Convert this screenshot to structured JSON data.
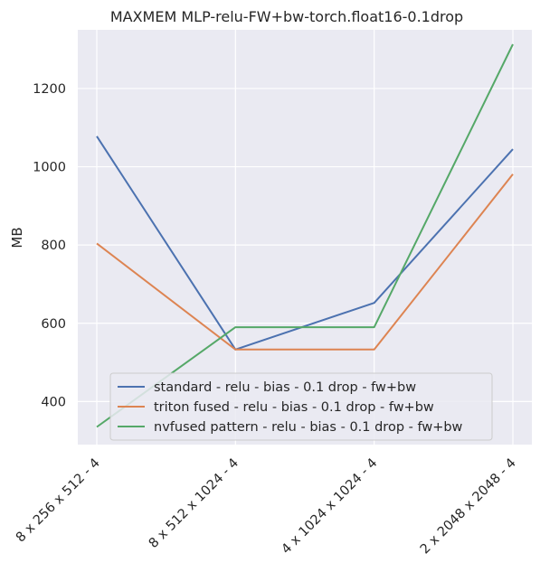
{
  "chart_data": {
    "type": "line",
    "title": "MAXMEM MLP-relu-FW+bw-torch.float16-0.1drop",
    "xlabel": "",
    "ylabel": "MB",
    "categories": [
      "8 x 256 x 512 - 4",
      "8 x 512 x 1024 - 4",
      "4 x 1024 x 1024 - 4",
      "2 x 2048 x 2048 - 4"
    ],
    "ylim": [
      290,
      1350
    ],
    "yticks": [
      400,
      600,
      800,
      1000,
      1200
    ],
    "grid": true,
    "legend_position": "lower-right",
    "series": [
      {
        "name": "standard - relu -  bias - 0.1 drop - fw+bw",
        "color": "#4c72b0",
        "values": [
          1078,
          533,
          652,
          1045
        ]
      },
      {
        "name": "triton fused - relu -  bias - 0.1 drop - fw+bw",
        "color": "#dd8452",
        "values": [
          804,
          533,
          533,
          981
        ]
      },
      {
        "name": "nvfused pattern - relu -  bias - 0.1 drop - fw+bw",
        "color": "#55a868",
        "values": [
          335,
          590,
          590,
          1313
        ]
      }
    ]
  }
}
